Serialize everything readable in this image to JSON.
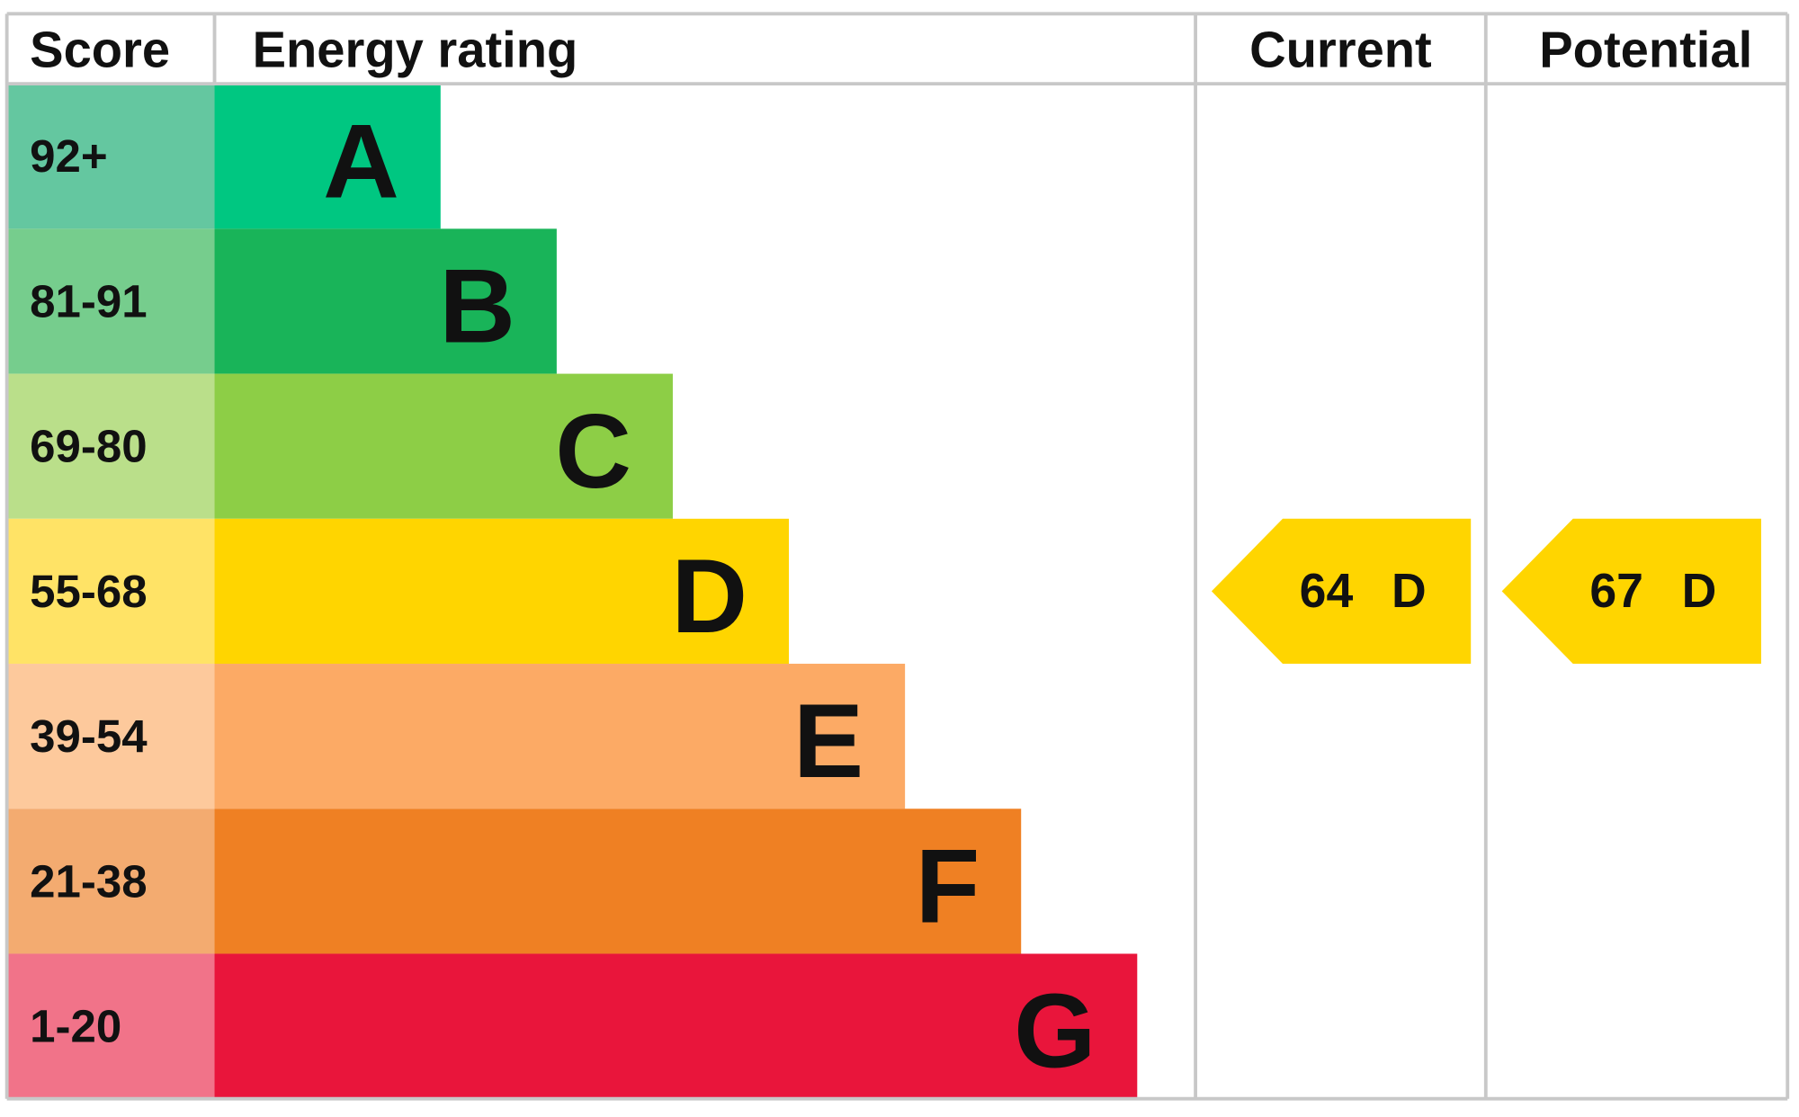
{
  "header": {
    "score": "Score",
    "rating": "Energy rating",
    "current": "Current",
    "potential": "Potential"
  },
  "bands": [
    {
      "score": "92+",
      "letter": "A",
      "color": "#00c781",
      "score_color": "#64c7a0"
    },
    {
      "score": "81-91",
      "letter": "B",
      "color": "#19b459",
      "score_color": "#76cd8d"
    },
    {
      "score": "69-80",
      "letter": "C",
      "color": "#8dce46",
      "score_color": "#badf8a"
    },
    {
      "score": "55-68",
      "letter": "D",
      "color": "#ffd500",
      "score_color": "#ffe366"
    },
    {
      "score": "39-54",
      "letter": "E",
      "color": "#fcaa65",
      "score_color": "#fdc99c"
    },
    {
      "score": "21-38",
      "letter": "F",
      "color": "#ef8023",
      "score_color": "#f3ab70"
    },
    {
      "score": "1-20",
      "letter": "G",
      "color": "#e9153b",
      "score_color": "#f17389"
    }
  ],
  "current": {
    "value": 64,
    "letter": "D",
    "color": "#ffd500"
  },
  "potential": {
    "value": 67,
    "letter": "D",
    "color": "#ffd500"
  }
}
